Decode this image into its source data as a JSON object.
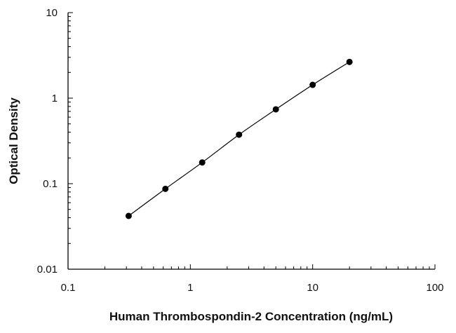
{
  "chart_data": {
    "type": "scatter",
    "title": "",
    "xlabel": "Human Thrombospondin-2 Concentration (ng/mL)",
    "ylabel": "Optical Density",
    "x_scale": "log",
    "y_scale": "log",
    "xlim": [
      0.1,
      100
    ],
    "ylim": [
      0.01,
      10
    ],
    "x_ticks": [
      "0.1",
      "1",
      "10",
      "100"
    ],
    "y_ticks": [
      "0.01",
      "0.1",
      "1",
      "10"
    ],
    "grid": false,
    "legend": "none",
    "series": [
      {
        "x": [
          0.313,
          0.625,
          1.25,
          2.5,
          5,
          10,
          20
        ],
        "y": [
          0.042,
          0.087,
          0.177,
          0.374,
          0.74,
          1.43,
          2.65
        ],
        "marker": "circle",
        "fitted_curve": true
      }
    ],
    "colors": {
      "marker": "#000000",
      "line": "#000000",
      "axis": "#000000"
    }
  }
}
